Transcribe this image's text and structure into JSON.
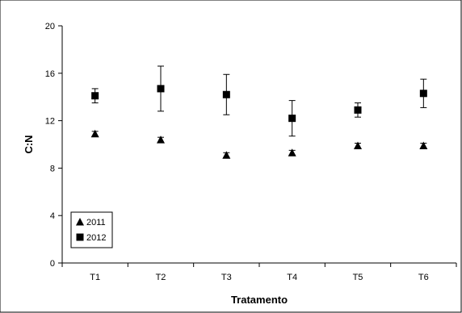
{
  "chart_data": {
    "type": "scatter",
    "xlabel": "Tratamento",
    "ylabel": "C:N",
    "categories": [
      "T1",
      "T2",
      "T3",
      "T4",
      "T5",
      "T6"
    ],
    "ylim": [
      0,
      20
    ],
    "yticks": [
      0,
      4,
      8,
      12,
      16,
      20
    ],
    "grid": false,
    "legend_position": "bottom-left",
    "series": [
      {
        "name": "2011",
        "marker": "triangle",
        "color": "#000000",
        "values": [
          10.9,
          10.4,
          9.1,
          9.3,
          9.9,
          9.9
        ],
        "errors": [
          0.2,
          0.2,
          0.2,
          0.2,
          0.2,
          0.2
        ]
      },
      {
        "name": "2012",
        "marker": "square",
        "color": "#000000",
        "values": [
          14.1,
          14.7,
          14.2,
          12.2,
          12.9,
          14.3
        ],
        "errors": [
          0.6,
          1.9,
          1.7,
          1.5,
          0.6,
          1.2
        ]
      }
    ]
  }
}
